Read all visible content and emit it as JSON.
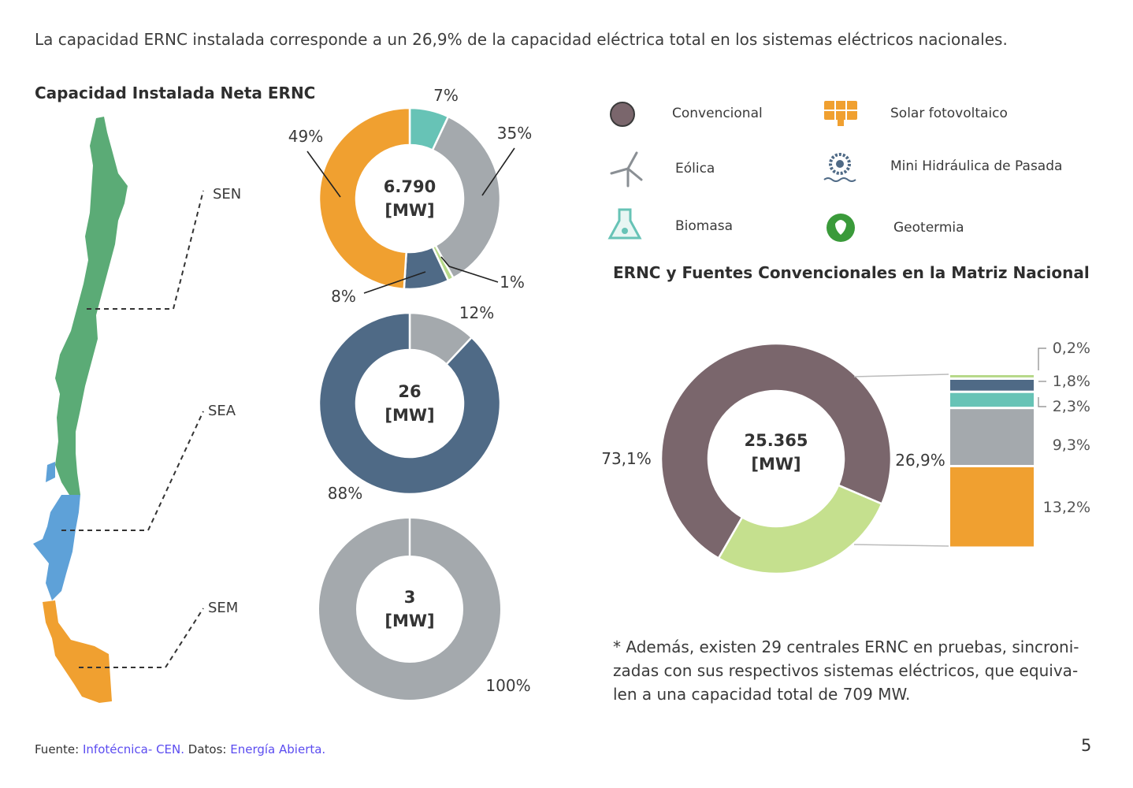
{
  "intro": "La capacidad ERNC instalada corresponde a un 26,9% de la capacidad eléctrica total en los sistemas eléctricos nacionales.",
  "left_title": "Capacidad Instalada Neta ERNC",
  "right_title": "ERNC y Fuentes Convencionales en la Matriz Nacional",
  "map_labels": {
    "sen": "SEN",
    "sea": "SEA",
    "sem": "SEM"
  },
  "legend": [
    {
      "label": "Convencional",
      "icon": "circle-icon",
      "color": "#7a666c"
    },
    {
      "label": "Solar fotovoltaico",
      "icon": "solar-panel-icon",
      "color": "#f0a030"
    },
    {
      "label": "Eólica",
      "icon": "wind-turbine-icon",
      "color": "#8a8f94"
    },
    {
      "label": "Mini Hidráulica de Pasada",
      "icon": "water-wheel-icon",
      "color": "#4f6a86"
    },
    {
      "label": "Biomasa",
      "icon": "flask-icon",
      "color": "#67c3b6"
    },
    {
      "label": "Geotermia",
      "icon": "geothermal-icon",
      "color": "#3a9a3a"
    }
  ],
  "colors": {
    "solar": "#f0a030",
    "eolica": "#a4a9ad",
    "hidraulica": "#4f6a86",
    "biomasa": "#67c3b6",
    "geotermia": "#b7d98a",
    "convencional": "#7a666c",
    "ernc": "#c5e08e",
    "map_sen": "#5bab76",
    "map_sea": "#5ea1d8",
    "map_sem": "#f0a030"
  },
  "chart_data": [
    {
      "type": "pie",
      "name": "SEN",
      "center_value": "6.790",
      "center_unit": "[MW]",
      "slices": [
        {
          "category": "biomasa",
          "value": 7,
          "label": "7%"
        },
        {
          "category": "eolica",
          "value": 35,
          "label": "35%"
        },
        {
          "category": "geotermia",
          "value": 1,
          "label": "1%"
        },
        {
          "category": "hidraulica",
          "value": 8,
          "label": "8%"
        },
        {
          "category": "solar",
          "value": 49,
          "label": "49%"
        }
      ]
    },
    {
      "type": "pie",
      "name": "SEA",
      "center_value": "26",
      "center_unit": "[MW]",
      "slices": [
        {
          "category": "eolica",
          "value": 12,
          "label": "12%"
        },
        {
          "category": "hidraulica",
          "value": 88,
          "label": "88%"
        }
      ]
    },
    {
      "type": "pie",
      "name": "SEM",
      "center_value": "3",
      "center_unit": "[MW]",
      "slices": [
        {
          "category": "eolica",
          "value": 100,
          "label": "100%"
        }
      ]
    },
    {
      "type": "pie",
      "name": "Matriz Nacional",
      "center_value": "25.365",
      "center_unit": "[MW]",
      "slices": [
        {
          "category": "convencional",
          "value": 73.1,
          "label": "73,1%"
        },
        {
          "category": "ernc",
          "value": 26.9,
          "label": "26,9%"
        }
      ]
    },
    {
      "type": "bar",
      "name": "ERNC desglose",
      "stacked": true,
      "segments": [
        {
          "category": "geotermia",
          "value": 0.2,
          "label": "0,2%"
        },
        {
          "category": "hidraulica",
          "value": 1.8,
          "label": "1,8%"
        },
        {
          "category": "biomasa",
          "value": 2.3,
          "label": "2,3%"
        },
        {
          "category": "eolica",
          "value": 9.3,
          "label": "9,3%"
        },
        {
          "category": "solar",
          "value": 13.2,
          "label": "13,2%"
        }
      ]
    }
  ],
  "note": {
    "line1": "* Además, existen 29 centrales ERNC en pruebas, sincroni-",
    "line2": "zadas con sus respectivos sistemas eléctricos, que equiva-",
    "line3": "len a una capacidad total de 709 MW."
  },
  "source": {
    "prefix": "Fuente:",
    "link1": "Infotécnica-",
    "link2": "CEN.",
    "mid": "Datos:",
    "link3": "Energía Abierta."
  },
  "page_number": "5"
}
